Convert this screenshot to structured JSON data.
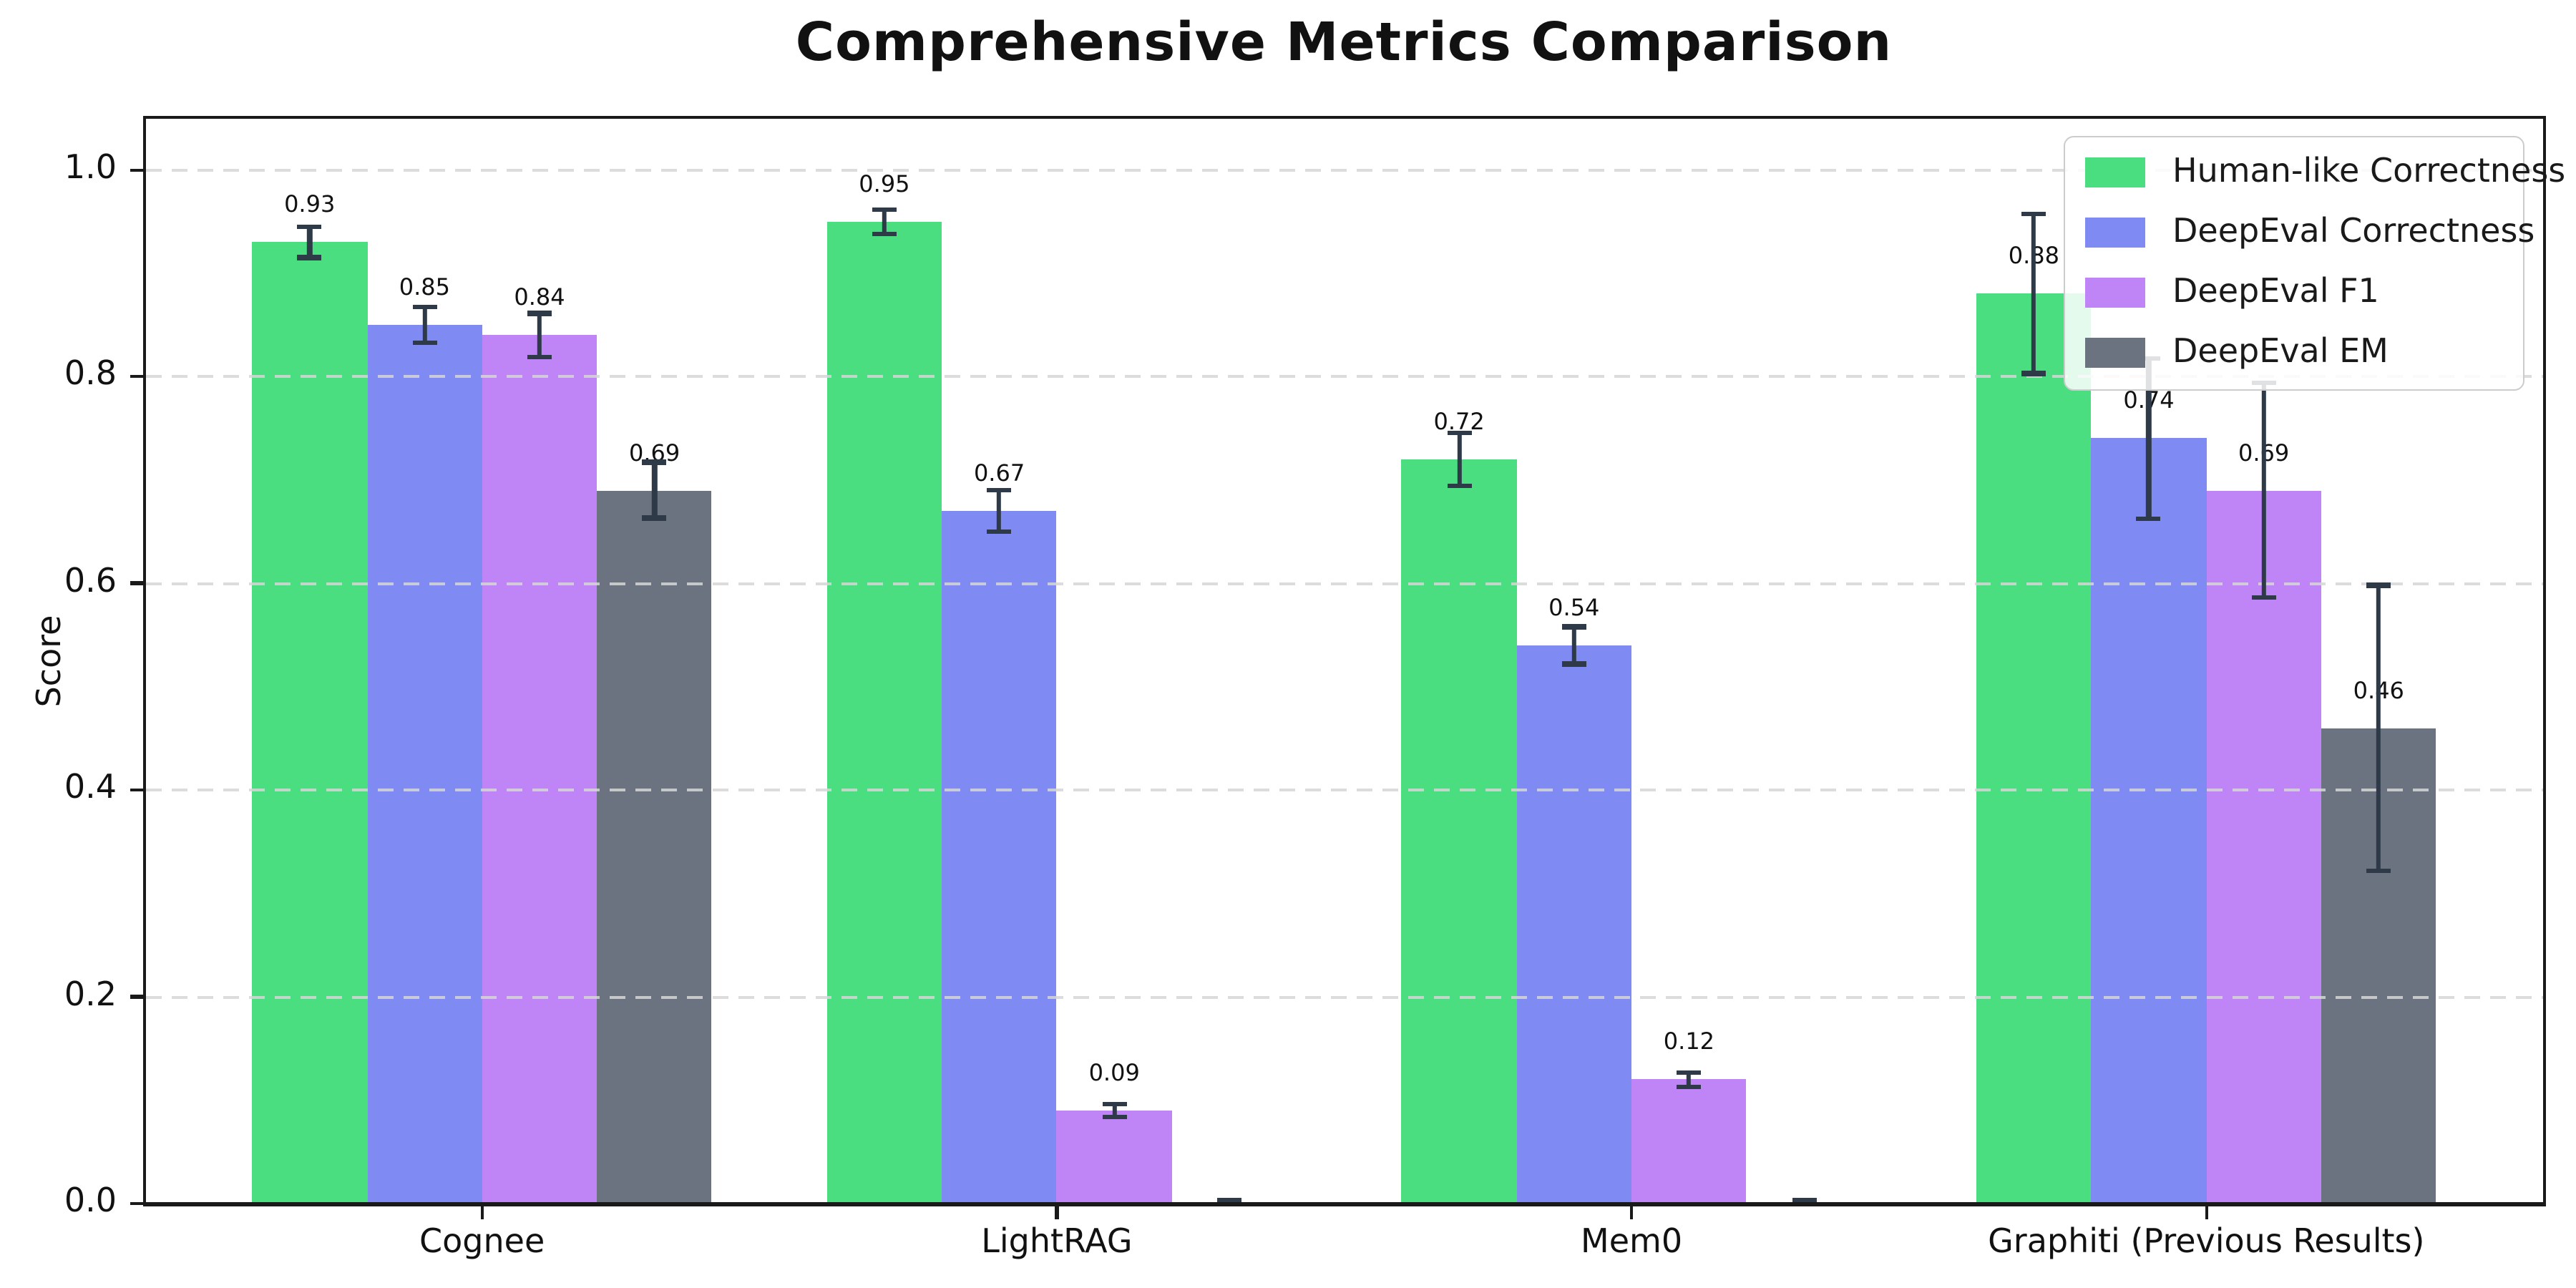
{
  "page": {
    "title": "Comprehensive Metrics Comparison"
  },
  "chart_data": {
    "type": "bar",
    "title": "Comprehensive Metrics Comparison",
    "xlabel": "",
    "ylabel": "Score",
    "categories": [
      "Cognee",
      "LightRAG",
      "Mem0",
      "Graphiti (Previous Results)"
    ],
    "series": [
      {
        "name": "Human-like Correctness",
        "color": "#4ade80",
        "values": [
          0.93,
          0.95,
          0.72,
          0.88
        ],
        "errors": [
          0.015,
          0.012,
          0.026,
          0.077
        ]
      },
      {
        "name": "DeepEval Correctness",
        "color": "#7f8af2",
        "values": [
          0.85,
          0.67,
          0.54,
          0.74
        ],
        "errors": [
          0.017,
          0.02,
          0.018,
          0.078
        ]
      },
      {
        "name": "DeepEval F1",
        "color": "#bf85f7",
        "values": [
          0.84,
          0.09,
          0.12,
          0.69
        ],
        "errors": [
          0.021,
          0.006,
          0.007,
          0.104
        ]
      },
      {
        "name": "DeepEval EM",
        "color": "#6b7280",
        "values": [
          0.69,
          0.0,
          0.0,
          0.46
        ],
        "errors": [
          0.027,
          0.004,
          0.004,
          0.138
        ]
      }
    ],
    "bar_value_labels": [
      [
        "0.93",
        "0.85",
        "0.84",
        "0.69"
      ],
      [
        "0.95",
        "0.67",
        "0.09",
        ""
      ],
      [
        "0.72",
        "0.54",
        "0.12",
        ""
      ],
      [
        "0.88",
        "0.74",
        "0.69",
        "0.46"
      ]
    ],
    "yticks": [
      "0.0",
      "0.2",
      "0.4",
      "0.6",
      "0.8",
      "1.0"
    ],
    "ylim": [
      0,
      1.05
    ],
    "xlim": [
      -0.586,
      3.586
    ],
    "bar_width_data_units": 0.2,
    "grid": "horizontal dashed, drawn over bars",
    "gridline_color": "#d6d6d6",
    "legend_position": "upper right",
    "error_bar_color": "#2e3a48",
    "value_label_offset": 0.025,
    "zero_value_bars_unlabeled": true
  }
}
